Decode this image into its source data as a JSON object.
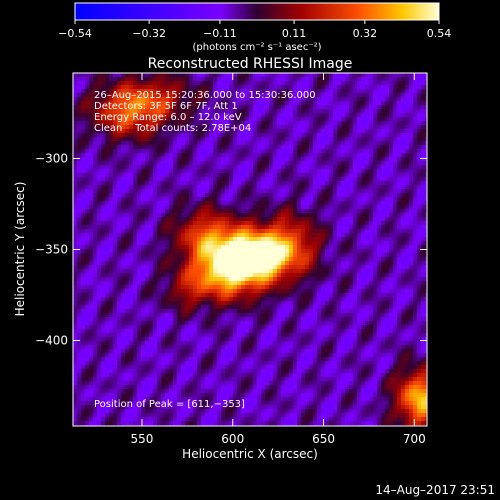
{
  "chart_data": {
    "type": "heatmap",
    "title": "Reconstructed RHESSI Image",
    "xlabel": "Heliocentric X (arcsec)",
    "ylabel": "Heliocentric Y (arcsec)",
    "xlim": [
      512,
      707
    ],
    "ylim": [
      -447,
      -253
    ],
    "xticks": [
      550,
      600,
      650,
      700
    ],
    "xtick_labels": [
      "550",
      "600",
      "650",
      "700"
    ],
    "yticks": [
      -300,
      -350,
      -400
    ],
    "ytick_labels": [
      "−300",
      "−350",
      "−400"
    ],
    "colorbar": {
      "min": -0.54,
      "max": 0.54,
      "ticks": [
        -0.54,
        -0.32,
        -0.11,
        0.11,
        0.32,
        0.54
      ],
      "tick_labels": [
        "−0.54",
        "−0.32",
        "−0.11",
        "0.11",
        "0.32",
        "0.54"
      ],
      "unit_label": "(photons cm⁻² s⁻¹ asec⁻²)"
    },
    "annotations": [
      "26–Aug–2015 15:20:36.000 to 15:30:36.000",
      "Detectors: 3F 5F 6F 7F, Att 1",
      "Energy Range: 6.0 – 12.0 keV",
      "Clean    Total counts: 2.78E+04"
    ],
    "peak_label": "Position of Peak = [611,−353]",
    "peak": [
      611,
      -353
    ],
    "footer_timestamp": "14–Aug–2017 23:51",
    "sources": [
      {
        "x": 611,
        "y": -353,
        "amp": 0.66,
        "sx": 16,
        "sy": 10
      },
      {
        "x": 597,
        "y": -364,
        "amp": 0.4,
        "sx": 14,
        "sy": 10
      },
      {
        "x": 585,
        "y": -342,
        "amp": 0.3,
        "sx": 12,
        "sy": 10
      },
      {
        "x": 632,
        "y": -346,
        "amp": 0.22,
        "sx": 11,
        "sy": 12
      },
      {
        "x": 575,
        "y": -372,
        "amp": 0.16,
        "sx": 9,
        "sy": 8
      },
      {
        "x": 543,
        "y": -274,
        "amp": 0.36,
        "sx": 14,
        "sy": 10
      },
      {
        "x": 560,
        "y": -266,
        "amp": 0.18,
        "sx": 14,
        "sy": 8
      },
      {
        "x": 703,
        "y": -432,
        "amp": 0.5,
        "sx": 9,
        "sy": 11
      }
    ],
    "background_level": -0.07
  }
}
